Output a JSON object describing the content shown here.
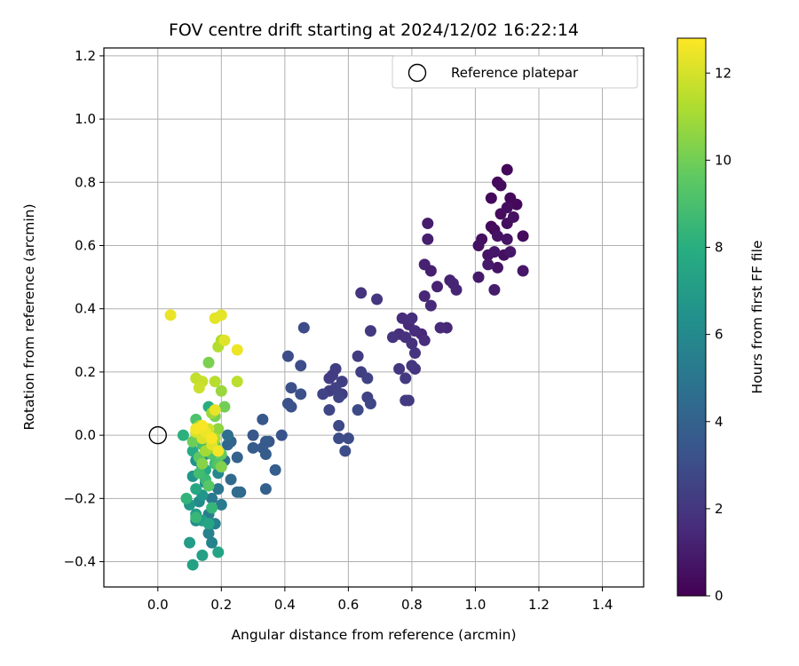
{
  "chart_data": {
    "type": "scatter",
    "title": "FOV centre drift starting at 2024/12/02 16:22:14",
    "xlabel": "Angular distance from reference (arcmin)",
    "ylabel": "Rotation from reference (arcmin)",
    "xlim": [
      -0.17,
      1.53
    ],
    "ylim": [
      -0.48,
      1.225
    ],
    "xticks": [
      0.0,
      0.2,
      0.4,
      0.6,
      0.8,
      1.0,
      1.2,
      1.4
    ],
    "xtick_labels": [
      "0.0",
      "0.2",
      "0.4",
      "0.6",
      "0.8",
      "1.0",
      "1.2",
      "1.4"
    ],
    "yticks": [
      -0.4,
      -0.2,
      0.0,
      0.2,
      0.4,
      0.6,
      0.8,
      1.0,
      1.2
    ],
    "ytick_labels": [
      "−0.4",
      "−0.2",
      "0.0",
      "0.2",
      "0.4",
      "0.6",
      "0.8",
      "1.0",
      "1.2"
    ],
    "grid": true,
    "legend": {
      "placement": "top-right",
      "entries": [
        "Reference platepar"
      ]
    },
    "reference_point": {
      "x": 0.0,
      "y": 0.0,
      "label": "Reference platepar"
    },
    "colorbar": {
      "label": "Hours from first FF file",
      "range": [
        0,
        12.8
      ],
      "ticks": [
        0,
        2,
        4,
        6,
        8,
        10,
        12
      ],
      "tick_labels": [
        "0",
        "2",
        "4",
        "6",
        "8",
        "10",
        "12"
      ],
      "colormap": "viridis"
    },
    "points": [
      {
        "x": 1.1,
        "y": 0.84,
        "t": 0.2
      },
      {
        "x": 1.07,
        "y": 0.8,
        "t": 0.3
      },
      {
        "x": 1.08,
        "y": 0.79,
        "t": 0.4
      },
      {
        "x": 1.05,
        "y": 0.75,
        "t": 0.3
      },
      {
        "x": 1.11,
        "y": 0.75,
        "t": 0.2
      },
      {
        "x": 1.13,
        "y": 0.73,
        "t": 0.3
      },
      {
        "x": 1.1,
        "y": 0.72,
        "t": 0.5
      },
      {
        "x": 1.08,
        "y": 0.7,
        "t": 0.4
      },
      {
        "x": 1.12,
        "y": 0.69,
        "t": 0.6
      },
      {
        "x": 1.05,
        "y": 0.66,
        "t": 0.3
      },
      {
        "x": 1.06,
        "y": 0.65,
        "t": 0.4
      },
      {
        "x": 1.1,
        "y": 0.67,
        "t": 0.5
      },
      {
        "x": 1.15,
        "y": 0.63,
        "t": 0.4
      },
      {
        "x": 1.07,
        "y": 0.63,
        "t": 0.6
      },
      {
        "x": 1.02,
        "y": 0.62,
        "t": 0.5
      },
      {
        "x": 1.1,
        "y": 0.62,
        "t": 0.7
      },
      {
        "x": 1.01,
        "y": 0.6,
        "t": 0.6
      },
      {
        "x": 1.06,
        "y": 0.58,
        "t": 0.8
      },
      {
        "x": 1.04,
        "y": 0.57,
        "t": 0.7
      },
      {
        "x": 1.09,
        "y": 0.57,
        "t": 0.5
      },
      {
        "x": 1.11,
        "y": 0.58,
        "t": 0.8
      },
      {
        "x": 1.04,
        "y": 0.54,
        "t": 0.9
      },
      {
        "x": 1.07,
        "y": 0.53,
        "t": 0.7
      },
      {
        "x": 1.15,
        "y": 0.52,
        "t": 0.8
      },
      {
        "x": 1.01,
        "y": 0.5,
        "t": 0.9
      },
      {
        "x": 1.06,
        "y": 0.46,
        "t": 1.0
      },
      {
        "x": 0.85,
        "y": 0.67,
        "t": 1.0
      },
      {
        "x": 0.85,
        "y": 0.62,
        "t": 1.1
      },
      {
        "x": 0.84,
        "y": 0.54,
        "t": 1.2
      },
      {
        "x": 0.86,
        "y": 0.52,
        "t": 1.1
      },
      {
        "x": 0.92,
        "y": 0.49,
        "t": 1.2
      },
      {
        "x": 0.93,
        "y": 0.48,
        "t": 1.3
      },
      {
        "x": 0.88,
        "y": 0.47,
        "t": 1.2
      },
      {
        "x": 0.94,
        "y": 0.46,
        "t": 1.3
      },
      {
        "x": 0.84,
        "y": 0.44,
        "t": 1.4
      },
      {
        "x": 0.86,
        "y": 0.41,
        "t": 1.5
      },
      {
        "x": 0.77,
        "y": 0.37,
        "t": 1.6
      },
      {
        "x": 0.8,
        "y": 0.37,
        "t": 1.7
      },
      {
        "x": 0.79,
        "y": 0.35,
        "t": 1.5
      },
      {
        "x": 0.81,
        "y": 0.33,
        "t": 1.6
      },
      {
        "x": 0.76,
        "y": 0.32,
        "t": 1.7
      },
      {
        "x": 0.83,
        "y": 0.32,
        "t": 1.4
      },
      {
        "x": 0.78,
        "y": 0.31,
        "t": 1.8
      },
      {
        "x": 0.84,
        "y": 0.3,
        "t": 1.6
      },
      {
        "x": 0.74,
        "y": 0.31,
        "t": 1.9
      },
      {
        "x": 0.89,
        "y": 0.34,
        "t": 1.5
      },
      {
        "x": 0.91,
        "y": 0.34,
        "t": 1.4
      },
      {
        "x": 0.8,
        "y": 0.29,
        "t": 1.8
      },
      {
        "x": 0.81,
        "y": 0.26,
        "t": 1.9
      },
      {
        "x": 0.8,
        "y": 0.22,
        "t": 2.0
      },
      {
        "x": 0.81,
        "y": 0.21,
        "t": 1.9
      },
      {
        "x": 0.76,
        "y": 0.21,
        "t": 2.0
      },
      {
        "x": 0.78,
        "y": 0.18,
        "t": 2.1
      },
      {
        "x": 0.78,
        "y": 0.11,
        "t": 2.2
      },
      {
        "x": 0.79,
        "y": 0.11,
        "t": 2.1
      },
      {
        "x": 0.64,
        "y": 0.45,
        "t": 1.9
      },
      {
        "x": 0.69,
        "y": 0.43,
        "t": 2.0
      },
      {
        "x": 0.67,
        "y": 0.33,
        "t": 2.1
      },
      {
        "x": 0.63,
        "y": 0.25,
        "t": 2.2
      },
      {
        "x": 0.56,
        "y": 0.21,
        "t": 2.3
      },
      {
        "x": 0.55,
        "y": 0.19,
        "t": 2.2
      },
      {
        "x": 0.58,
        "y": 0.17,
        "t": 2.4
      },
      {
        "x": 0.54,
        "y": 0.18,
        "t": 2.3
      },
      {
        "x": 0.64,
        "y": 0.2,
        "t": 2.4
      },
      {
        "x": 0.66,
        "y": 0.18,
        "t": 2.5
      },
      {
        "x": 0.56,
        "y": 0.15,
        "t": 2.5
      },
      {
        "x": 0.58,
        "y": 0.13,
        "t": 2.4
      },
      {
        "x": 0.54,
        "y": 0.14,
        "t": 2.3
      },
      {
        "x": 0.52,
        "y": 0.13,
        "t": 2.6
      },
      {
        "x": 0.57,
        "y": 0.12,
        "t": 2.6
      },
      {
        "x": 0.66,
        "y": 0.12,
        "t": 2.5
      },
      {
        "x": 0.67,
        "y": 0.1,
        "t": 2.7
      },
      {
        "x": 0.63,
        "y": 0.08,
        "t": 2.8
      },
      {
        "x": 0.54,
        "y": 0.08,
        "t": 2.7
      },
      {
        "x": 0.57,
        "y": 0.03,
        "t": 2.8
      },
      {
        "x": 0.57,
        "y": -0.01,
        "t": 2.9
      },
      {
        "x": 0.6,
        "y": -0.01,
        "t": 2.9
      },
      {
        "x": 0.59,
        "y": -0.05,
        "t": 3.0
      },
      {
        "x": 0.46,
        "y": 0.34,
        "t": 2.9
      },
      {
        "x": 0.41,
        "y": 0.25,
        "t": 3.0
      },
      {
        "x": 0.45,
        "y": 0.22,
        "t": 3.0
      },
      {
        "x": 0.42,
        "y": 0.15,
        "t": 3.1
      },
      {
        "x": 0.45,
        "y": 0.13,
        "t": 3.1
      },
      {
        "x": 0.41,
        "y": 0.1,
        "t": 3.2
      },
      {
        "x": 0.42,
        "y": 0.09,
        "t": 3.2
      },
      {
        "x": 0.39,
        "y": 0.0,
        "t": 3.3
      },
      {
        "x": 0.33,
        "y": 0.05,
        "t": 3.5
      },
      {
        "x": 0.3,
        "y": 0.0,
        "t": 3.5
      },
      {
        "x": 0.34,
        "y": -0.02,
        "t": 3.6
      },
      {
        "x": 0.35,
        "y": -0.02,
        "t": 3.4
      },
      {
        "x": 0.33,
        "y": -0.04,
        "t": 3.6
      },
      {
        "x": 0.3,
        "y": -0.04,
        "t": 3.7
      },
      {
        "x": 0.34,
        "y": -0.06,
        "t": 3.7
      },
      {
        "x": 0.37,
        "y": -0.11,
        "t": 3.8
      },
      {
        "x": 0.34,
        "y": -0.17,
        "t": 3.9
      },
      {
        "x": 0.25,
        "y": -0.07,
        "t": 4.0
      },
      {
        "x": 0.23,
        "y": -0.02,
        "t": 4.1
      },
      {
        "x": 0.22,
        "y": -0.03,
        "t": 4.2
      },
      {
        "x": 0.23,
        "y": -0.14,
        "t": 4.4
      },
      {
        "x": 0.25,
        "y": -0.18,
        "t": 4.5
      },
      {
        "x": 0.26,
        "y": -0.18,
        "t": 4.3
      },
      {
        "x": 0.22,
        "y": 0.0,
        "t": 4.6
      },
      {
        "x": 0.21,
        "y": -0.08,
        "t": 4.8
      },
      {
        "x": 0.19,
        "y": -0.17,
        "t": 5.0
      },
      {
        "x": 0.17,
        "y": -0.2,
        "t": 5.2
      },
      {
        "x": 0.2,
        "y": -0.22,
        "t": 5.3
      },
      {
        "x": 0.16,
        "y": -0.25,
        "t": 5.4
      },
      {
        "x": 0.18,
        "y": -0.28,
        "t": 5.5
      },
      {
        "x": 0.16,
        "y": -0.31,
        "t": 5.6
      },
      {
        "x": 0.17,
        "y": -0.34,
        "t": 5.7
      },
      {
        "x": 0.15,
        "y": -0.15,
        "t": 5.8
      },
      {
        "x": 0.19,
        "y": -0.12,
        "t": 5.9
      },
      {
        "x": 0.14,
        "y": -0.1,
        "t": 6.0
      },
      {
        "x": 0.13,
        "y": -0.21,
        "t": 6.1
      },
      {
        "x": 0.12,
        "y": -0.27,
        "t": 6.2
      },
      {
        "x": 0.18,
        "y": -0.04,
        "t": 6.3
      },
      {
        "x": 0.15,
        "y": -0.06,
        "t": 6.4
      },
      {
        "x": 0.12,
        "y": -0.08,
        "t": 6.5
      },
      {
        "x": 0.11,
        "y": -0.13,
        "t": 6.6
      },
      {
        "x": 0.14,
        "y": -0.19,
        "t": 6.7
      },
      {
        "x": 0.1,
        "y": -0.22,
        "t": 6.8
      },
      {
        "x": 0.12,
        "y": -0.25,
        "t": 6.9
      },
      {
        "x": 0.14,
        "y": -0.27,
        "t": 7.0
      },
      {
        "x": 0.1,
        "y": -0.34,
        "t": 7.0
      },
      {
        "x": 0.14,
        "y": -0.38,
        "t": 7.2
      },
      {
        "x": 0.11,
        "y": -0.41,
        "t": 7.3
      },
      {
        "x": 0.19,
        "y": -0.37,
        "t": 7.4
      },
      {
        "x": 0.16,
        "y": -0.28,
        "t": 7.5
      },
      {
        "x": 0.12,
        "y": -0.17,
        "t": 7.6
      },
      {
        "x": 0.15,
        "y": -0.11,
        "t": 7.7
      },
      {
        "x": 0.11,
        "y": -0.05,
        "t": 7.8
      },
      {
        "x": 0.16,
        "y": 0.09,
        "t": 7.9
      },
      {
        "x": 0.15,
        "y": 0.02,
        "t": 8.0
      },
      {
        "x": 0.08,
        "y": 0.0,
        "t": 8.1
      },
      {
        "x": 0.13,
        "y": 0.01,
        "t": 8.2
      },
      {
        "x": 0.09,
        "y": -0.2,
        "t": 8.3
      },
      {
        "x": 0.17,
        "y": -0.23,
        "t": 8.4
      },
      {
        "x": 0.12,
        "y": -0.26,
        "t": 8.5
      },
      {
        "x": 0.15,
        "y": -0.14,
        "t": 8.6
      },
      {
        "x": 0.18,
        "y": -0.09,
        "t": 8.7
      },
      {
        "x": 0.13,
        "y": -0.12,
        "t": 8.8
      },
      {
        "x": 0.14,
        "y": -0.03,
        "t": 9.0
      },
      {
        "x": 0.12,
        "y": 0.05,
        "t": 9.1
      },
      {
        "x": 0.17,
        "y": -0.06,
        "t": 9.2
      },
      {
        "x": 0.19,
        "y": -0.09,
        "t": 9.3
      },
      {
        "x": 0.16,
        "y": -0.16,
        "t": 9.4
      },
      {
        "x": 0.13,
        "y": -0.07,
        "t": 9.5
      },
      {
        "x": 0.18,
        "y": -0.03,
        "t": 9.6
      },
      {
        "x": 0.2,
        "y": -0.06,
        "t": 9.7
      },
      {
        "x": 0.15,
        "y": 0.0,
        "t": 9.8
      },
      {
        "x": 0.11,
        "y": -0.02,
        "t": 9.9
      },
      {
        "x": 0.21,
        "y": 0.09,
        "t": 10.0
      },
      {
        "x": 0.18,
        "y": 0.06,
        "t": 10.1
      },
      {
        "x": 0.16,
        "y": 0.23,
        "t": 10.2
      },
      {
        "x": 0.2,
        "y": -0.1,
        "t": 10.3
      },
      {
        "x": 0.14,
        "y": -0.09,
        "t": 10.4
      },
      {
        "x": 0.17,
        "y": -0.04,
        "t": 10.5
      },
      {
        "x": 0.19,
        "y": 0.02,
        "t": 10.6
      },
      {
        "x": 0.13,
        "y": 0.03,
        "t": 10.7
      },
      {
        "x": 0.2,
        "y": 0.14,
        "t": 10.8
      },
      {
        "x": 0.17,
        "y": 0.07,
        "t": 10.9
      },
      {
        "x": 0.15,
        "y": -0.05,
        "t": 11.0
      },
      {
        "x": 0.18,
        "y": -0.01,
        "t": 11.1
      },
      {
        "x": 0.2,
        "y": 0.3,
        "t": 11.2
      },
      {
        "x": 0.19,
        "y": 0.28,
        "t": 11.3
      },
      {
        "x": 0.18,
        "y": 0.17,
        "t": 11.4
      },
      {
        "x": 0.25,
        "y": 0.17,
        "t": 11.5
      },
      {
        "x": 0.12,
        "y": 0.18,
        "t": 11.6
      },
      {
        "x": 0.14,
        "y": 0.17,
        "t": 11.7
      },
      {
        "x": 0.13,
        "y": 0.15,
        "t": 11.8
      },
      {
        "x": 0.16,
        "y": 0.02,
        "t": 11.9
      },
      {
        "x": 0.12,
        "y": 0.01,
        "t": 12.0
      },
      {
        "x": 0.14,
        "y": -0.01,
        "t": 12.1
      },
      {
        "x": 0.17,
        "y": -0.03,
        "t": 12.2
      },
      {
        "x": 0.18,
        "y": 0.37,
        "t": 12.3
      },
      {
        "x": 0.2,
        "y": 0.38,
        "t": 12.3
      },
      {
        "x": 0.04,
        "y": 0.38,
        "t": 12.4
      },
      {
        "x": 0.25,
        "y": 0.27,
        "t": 12.5
      },
      {
        "x": 0.21,
        "y": 0.3,
        "t": 12.2
      },
      {
        "x": 0.18,
        "y": 0.08,
        "t": 12.4
      },
      {
        "x": 0.15,
        "y": 0.01,
        "t": 12.5
      },
      {
        "x": 0.12,
        "y": 0.02,
        "t": 12.6
      },
      {
        "x": 0.19,
        "y": -0.05,
        "t": 12.6
      },
      {
        "x": 0.14,
        "y": 0.03,
        "t": 12.7
      },
      {
        "x": 0.17,
        "y": -0.01,
        "t": 12.7
      }
    ]
  }
}
